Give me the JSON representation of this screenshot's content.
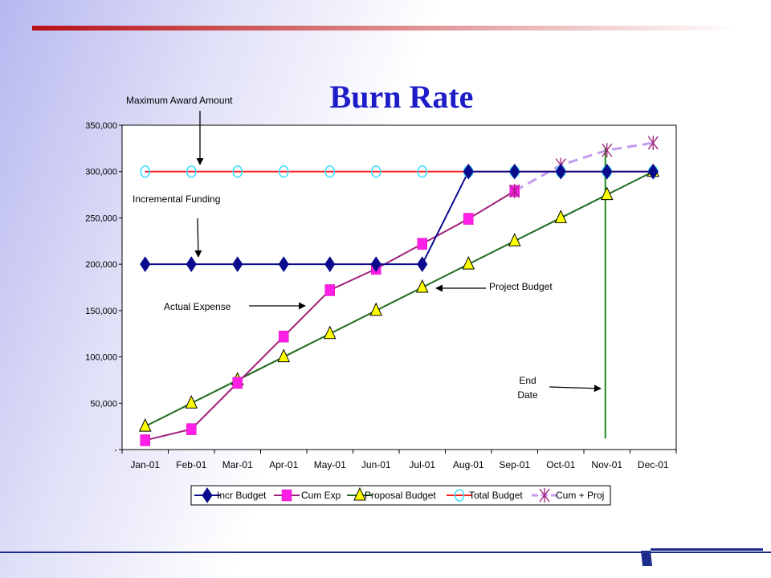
{
  "slide": {
    "title": "Burn Rate",
    "accent_colors": {
      "top_bar_start": "#b80f14",
      "top_bar_end": "#ffffff",
      "bottom_line": "#1c2d8c"
    }
  },
  "annotations": {
    "max_award": "Maximum Award Amount",
    "incremental": "Incremental  Funding",
    "actual_expense": "Actual Expense",
    "project_budget": "Project Budget",
    "end_date_line1": "End",
    "end_date_line2": "Date"
  },
  "chart_data": {
    "type": "line",
    "title": "Burn Rate",
    "categories": [
      "Jan-01",
      "Feb-01",
      "Mar-01",
      "Apr-01",
      "May-01",
      "Jun-01",
      "Jul-01",
      "Aug-01",
      "Sep-01",
      "Oct-01",
      "Nov-01",
      "Dec-01"
    ],
    "y_ticks": [
      {
        "value": 0,
        "label": "-"
      },
      {
        "value": 50000,
        "label": "50,000"
      },
      {
        "value": 100000,
        "label": "100,000"
      },
      {
        "value": 150000,
        "label": "150,000"
      },
      {
        "value": 200000,
        "label": "200,000"
      },
      {
        "value": 250000,
        "label": "250,000"
      },
      {
        "value": 300000,
        "label": "300,000"
      },
      {
        "value": 350000,
        "label": "350,000"
      }
    ],
    "ylim": [
      0,
      350000
    ],
    "grid": false,
    "legend_position": "bottom",
    "series": [
      {
        "name": "Incr Budget",
        "color": "#0a0a8c",
        "marker": "diamond",
        "marker_color": "#0a0a8c",
        "values": [
          200000,
          200000,
          200000,
          200000,
          200000,
          200000,
          200000,
          300000,
          300000,
          300000,
          300000,
          300000
        ]
      },
      {
        "name": "Cum Exp",
        "color": "#a0207a",
        "marker": "square",
        "marker_color": "#ff1ee6",
        "values": [
          10000,
          22000,
          72000,
          122000,
          172000,
          195000,
          222000,
          249000,
          279000,
          null,
          null,
          null
        ]
      },
      {
        "name": "Proposal Budget",
        "color": "#1e6a1e",
        "marker": "triangle",
        "marker_color": "#ffff00",
        "values": [
          25000,
          50000,
          75000,
          100000,
          125000,
          150000,
          175000,
          200000,
          225000,
          250000,
          275000,
          300000
        ]
      },
      {
        "name": "Total Budget",
        "color": "#ff1e1e",
        "marker": "circle",
        "marker_color": "#33dfff",
        "values": [
          300000,
          300000,
          300000,
          300000,
          300000,
          300000,
          300000,
          300000,
          300000,
          300000,
          300000,
          300000
        ]
      },
      {
        "name": "Cum + Proj",
        "color": "#c39af0",
        "marker": "star",
        "marker_color": "#a0207a",
        "dashed": true,
        "values": [
          null,
          null,
          null,
          null,
          null,
          null,
          null,
          null,
          279000,
          307000,
          323000,
          331000
        ]
      }
    ],
    "end_date_marker": {
      "category": "Nov-01",
      "color": "#1e8c1e",
      "from": 12000,
      "to": 326000
    }
  }
}
